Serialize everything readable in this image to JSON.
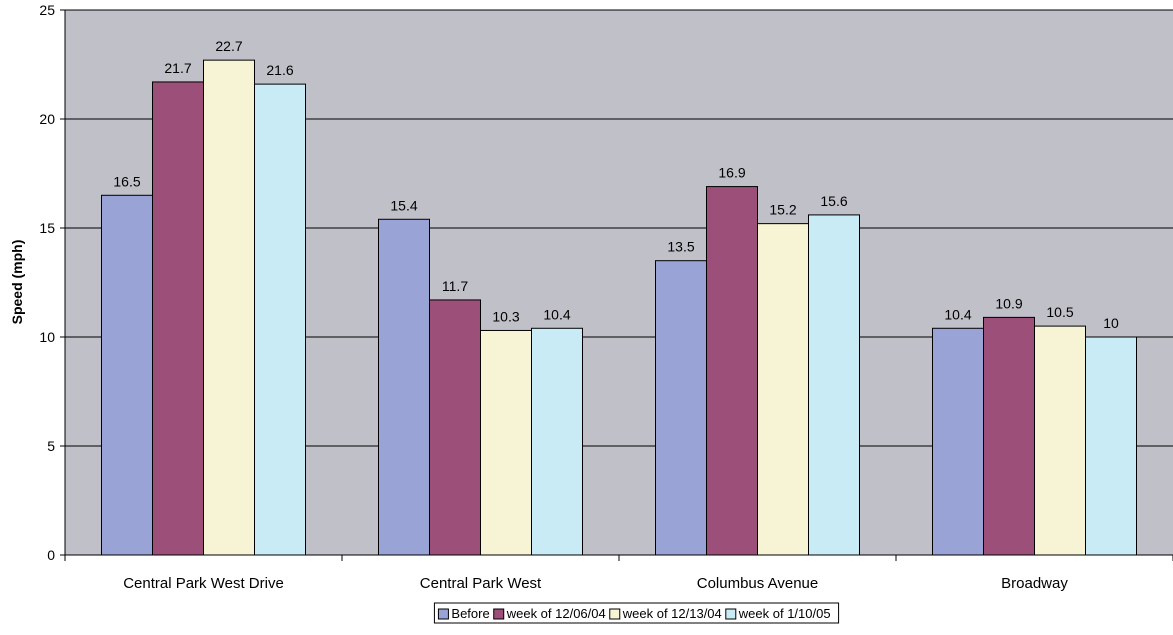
{
  "chart_data": {
    "type": "bar",
    "title": "",
    "xlabel": "",
    "ylabel": "Speed (mph)",
    "ylim": [
      0,
      25
    ],
    "yticks": [
      0,
      5,
      10,
      15,
      20,
      25
    ],
    "grid": true,
    "legend_position": "bottom",
    "plot_background": "#c0c0c8",
    "categories": [
      "Central Park West Drive",
      "Central Park West",
      "Columbus Avenue",
      "Broadway"
    ],
    "series": [
      {
        "name": "Before",
        "color": "#99a3d6",
        "values": [
          16.5,
          15.4,
          13.5,
          10.4
        ]
      },
      {
        "name": "week of 12/06/04",
        "color": "#9c4f78",
        "values": [
          21.7,
          11.7,
          16.9,
          10.9
        ]
      },
      {
        "name": "week of 12/13/04",
        "color": "#f6f4d4",
        "values": [
          22.7,
          10.3,
          15.2,
          10.5
        ]
      },
      {
        "name": "week of 1/10/05",
        "color": "#c9ebf5",
        "values": [
          21.6,
          10.4,
          15.6,
          10
        ]
      }
    ]
  }
}
